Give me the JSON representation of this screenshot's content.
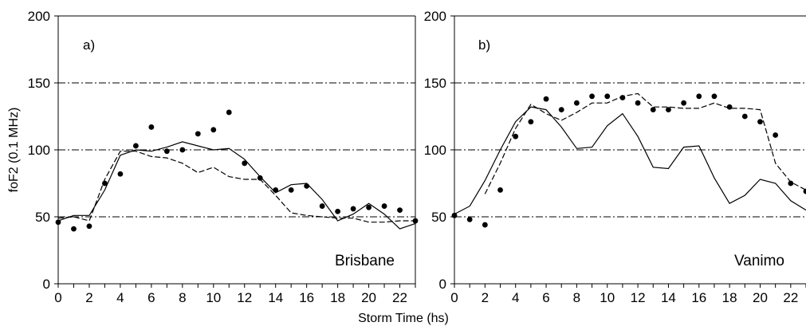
{
  "figure": {
    "ylabel": "foF2 (0.1 MHz)",
    "xlabel": "Storm Time (hs)"
  },
  "chart_data": [
    {
      "type": "line",
      "panel": "a)",
      "station": "Brisbane",
      "xlim": [
        0,
        23
      ],
      "ylim": [
        0,
        200
      ],
      "xticks": [
        0,
        2,
        4,
        6,
        8,
        10,
        12,
        14,
        16,
        18,
        20,
        22
      ],
      "yticks": [
        0,
        50,
        100,
        150,
        200
      ],
      "grid": "horizontal dash-dot at 50, 100, 150",
      "series": [
        {
          "style": "solid",
          "x": [
            0,
            1,
            2,
            3,
            4,
            5,
            6,
            7,
            8,
            9,
            10,
            11,
            12,
            13,
            14,
            15,
            16,
            17,
            18,
            19,
            20,
            21,
            22,
            23
          ],
          "y": [
            47,
            51,
            51,
            70,
            96,
            100,
            99,
            102,
            106,
            103,
            100,
            101,
            93,
            80,
            68,
            74,
            75,
            63,
            47,
            52,
            60,
            52,
            41,
            45
          ]
        },
        {
          "style": "dashed",
          "x": [
            0,
            1,
            2,
            3,
            4,
            5,
            6,
            7,
            8,
            9,
            10,
            11,
            12,
            13,
            14,
            15,
            16,
            17,
            18,
            19,
            20,
            21,
            22,
            23
          ],
          "y": [
            49,
            50,
            47,
            78,
            99,
            99,
            95,
            94,
            90,
            83,
            87,
            80,
            78,
            78,
            66,
            53,
            51,
            50,
            49,
            49,
            46,
            46,
            47,
            47
          ]
        },
        {
          "style": "dots",
          "x": [
            0,
            1,
            2,
            3,
            4,
            5,
            6,
            7,
            8,
            9,
            10,
            11,
            12,
            13,
            14,
            15,
            16,
            17,
            18,
            19,
            20,
            21,
            22,
            23
          ],
          "y": [
            46,
            41,
            43,
            75,
            82,
            103,
            117,
            99,
            100,
            112,
            115,
            128,
            90,
            79,
            70,
            70,
            73,
            58,
            54,
            56,
            57,
            58,
            55,
            47
          ]
        }
      ]
    },
    {
      "type": "line",
      "panel": "b)",
      "station": "Vanimo",
      "xlim": [
        0,
        23
      ],
      "ylim": [
        0,
        200
      ],
      "xticks": [
        0,
        2,
        4,
        6,
        8,
        10,
        12,
        14,
        16,
        18,
        20,
        22
      ],
      "yticks": [
        0,
        50,
        100,
        150,
        200
      ],
      "grid": "horizontal dash-dot at 50, 100, 150",
      "series": [
        {
          "style": "solid",
          "x": [
            0,
            1,
            2,
            3,
            4,
            5,
            6,
            7,
            8,
            9,
            10,
            11,
            12,
            13,
            14,
            15,
            16,
            17,
            18,
            19,
            20,
            21,
            22,
            23
          ],
          "y": [
            52,
            58,
            77,
            100,
            121,
            132,
            130,
            117,
            101,
            102,
            118,
            127,
            110,
            87,
            86,
            102,
            103,
            79,
            60,
            66,
            78,
            75,
            62,
            55
          ]
        },
        {
          "style": "dashed",
          "x": [
            2,
            3,
            4,
            5,
            6,
            7,
            8,
            9,
            10,
            11,
            12,
            13,
            14,
            15,
            16,
            17,
            18,
            19,
            20,
            21,
            22,
            23
          ],
          "y": [
            67,
            90,
            116,
            134,
            127,
            122,
            128,
            135,
            135,
            140,
            142,
            132,
            132,
            131,
            131,
            135,
            131,
            131,
            130,
            90,
            76,
            70
          ]
        },
        {
          "style": "dots",
          "x": [
            0,
            1,
            2,
            3,
            4,
            5,
            6,
            7,
            8,
            9,
            10,
            11,
            12,
            13,
            14,
            15,
            16,
            17,
            18,
            19,
            20,
            21,
            22,
            23
          ],
          "y": [
            51,
            48,
            44,
            70,
            110,
            121,
            138,
            130,
            135,
            140,
            140,
            139,
            135,
            130,
            130,
            135,
            140,
            140,
            132,
            125,
            121,
            111,
            75,
            69
          ]
        }
      ]
    }
  ]
}
